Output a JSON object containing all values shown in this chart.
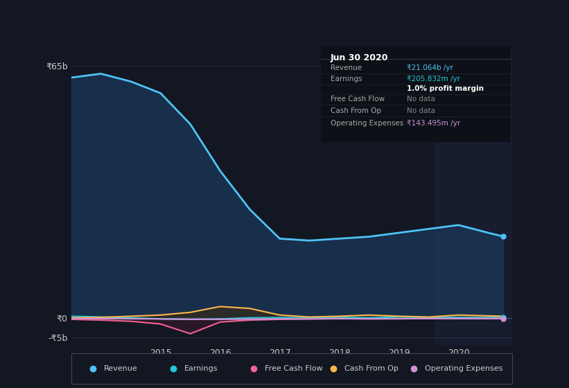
{
  "bg_color": "#131722",
  "plot_bg_color": "#131722",
  "highlight_bg_color": "#1a2035",
  "grid_color": "#2a3050",
  "x_min": 2013.5,
  "x_max": 2020.9,
  "y_min": -7000000000,
  "y_max": 70000000000,
  "y_ticks": [
    0,
    65000000000,
    -5000000000
  ],
  "y_tick_labels": [
    "₹0",
    "₹65b",
    "-₹5b"
  ],
  "x_ticks": [
    2015,
    2016,
    2017,
    2018,
    2019,
    2020
  ],
  "highlight_start": 2019.6,
  "revenue": {
    "x": [
      2013.5,
      2014.0,
      2014.5,
      2015.0,
      2015.5,
      2016.0,
      2016.5,
      2017.0,
      2017.5,
      2018.0,
      2018.5,
      2019.0,
      2019.5,
      2020.0,
      2020.5,
      2020.75
    ],
    "y": [
      62000000000,
      63000000000,
      61000000000,
      58000000000,
      50000000000,
      38000000000,
      28000000000,
      20500000000,
      20000000000,
      20500000000,
      21000000000,
      22000000000,
      23000000000,
      24000000000,
      22000000000,
      21064000000
    ],
    "color": "#4fc3f7",
    "fill_color": "#1a3a5c",
    "label": "Revenue",
    "linewidth": 2.0
  },
  "earnings": {
    "x": [
      2013.5,
      2014.0,
      2014.5,
      2015.0,
      2015.5,
      2016.0,
      2016.5,
      2017.0,
      2017.5,
      2018.0,
      2018.5,
      2019.0,
      2019.5,
      2020.0,
      2020.5,
      2020.75
    ],
    "y": [
      500000000,
      300000000,
      100000000,
      -200000000,
      -300000000,
      -200000000,
      100000000,
      150000000,
      100000000,
      200000000,
      100000000,
      300000000,
      200000000,
      200000000,
      200000000,
      205832000
    ],
    "color": "#26c6da",
    "fill_color": "#0d2a2a",
    "label": "Earnings",
    "linewidth": 1.5
  },
  "free_cash_flow": {
    "x": [
      2013.5,
      2014.0,
      2014.5,
      2015.0,
      2015.5,
      2016.0,
      2016.5,
      2017.0,
      2017.5,
      2018.0,
      2018.5,
      2019.0,
      2019.5,
      2020.0,
      2020.5,
      2020.75
    ],
    "y": [
      -300000000,
      -500000000,
      -800000000,
      -1500000000,
      -4000000000,
      -1000000000,
      -500000000,
      -300000000,
      -200000000,
      -100000000,
      -200000000,
      -150000000,
      -100000000,
      -100000000,
      -50000000,
      -50000000
    ],
    "color": "#f06292",
    "fill_color": "#3a1a2a",
    "label": "Free Cash Flow",
    "linewidth": 1.5
  },
  "cash_from_op": {
    "x": [
      2013.5,
      2014.0,
      2014.5,
      2015.0,
      2015.5,
      2016.0,
      2016.5,
      2017.0,
      2017.5,
      2018.0,
      2018.5,
      2019.0,
      2019.5,
      2020.0,
      2020.5,
      2020.75
    ],
    "y": [
      100000000,
      200000000,
      500000000,
      800000000,
      1500000000,
      3000000000,
      2500000000,
      800000000,
      300000000,
      500000000,
      800000000,
      500000000,
      300000000,
      800000000,
      600000000,
      500000000
    ],
    "color": "#ffb74d",
    "fill_color": "#3a2a10",
    "label": "Cash From Op",
    "linewidth": 1.5
  },
  "operating_expenses": {
    "x": [
      2013.5,
      2014.0,
      2014.5,
      2015.0,
      2015.5,
      2016.0,
      2016.5,
      2017.0,
      2017.5,
      2018.0,
      2018.5,
      2019.0,
      2019.5,
      2020.0,
      2020.5,
      2020.75
    ],
    "y": [
      -100000000,
      -100000000,
      -150000000,
      -200000000,
      -300000000,
      -300000000,
      -250000000,
      -200000000,
      -200000000,
      -150000000,
      -150000000,
      -150000000,
      -120000000,
      -120000000,
      -140000000,
      -143495000
    ],
    "color": "#ce93d8",
    "fill_color": "#2a1a3a",
    "label": "Operating Expenses",
    "linewidth": 1.5
  },
  "info_box": {
    "title": "Jun 30 2020",
    "rows": [
      {
        "label": "Revenue",
        "value": "₹21.064b /yr",
        "value_color": "#4fc3f7"
      },
      {
        "label": "Earnings",
        "value": "₹205.832m /yr",
        "value_color": "#26c6da"
      },
      {
        "label": "",
        "value": "1.0% profit margin",
        "value_color": "#ffffff",
        "bold": true
      },
      {
        "label": "Free Cash Flow",
        "value": "No data",
        "value_color": "#888888"
      },
      {
        "label": "Cash From Op",
        "value": "No data",
        "value_color": "#888888"
      },
      {
        "label": "Operating Expenses",
        "value": "₹143.495m /yr",
        "value_color": "#ce93d8"
      }
    ]
  },
  "legend_items": [
    {
      "label": "Revenue",
      "color": "#4fc3f7"
    },
    {
      "label": "Earnings",
      "color": "#26c6da"
    },
    {
      "label": "Free Cash Flow",
      "color": "#f06292"
    },
    {
      "label": "Cash From Op",
      "color": "#ffb74d"
    },
    {
      "label": "Operating Expenses",
      "color": "#ce93d8"
    }
  ]
}
